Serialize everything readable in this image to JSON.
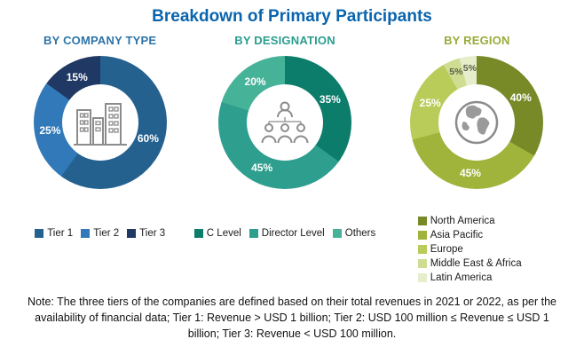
{
  "title": "Breakdown of Primary Participants",
  "note": "Note: The three tiers of the companies are defined based on their total revenues in 2021 or 2022, as per the availability of financial data; Tier 1: Revenue > USD 1 billion; Tier 2: USD 100 million ≤ Revenue ≤ USD 1 billion; Tier 3: Revenue < USD 100 million.",
  "chart_data": [
    {
      "type": "pie",
      "title": "BY COMPANY TYPE",
      "accent": "#2e74a8",
      "center_icon": "buildings-icon",
      "legend_layout": "row",
      "legend_position": "bottom",
      "slices": [
        {
          "label": "Tier 1",
          "value": 60,
          "color": "#25618f"
        },
        {
          "label": "Tier 2",
          "value": 25,
          "color": "#3179b8"
        },
        {
          "label": "Tier 3",
          "value": 15,
          "color": "#1f3864"
        }
      ]
    },
    {
      "type": "pie",
      "title": "BY DESIGNATION",
      "accent": "#2a9d8f",
      "center_icon": "org-people-icon",
      "legend_layout": "row",
      "legend_position": "bottom",
      "slices": [
        {
          "label": "C Level",
          "value": 35,
          "color": "#0c7c6b"
        },
        {
          "label": "Director Level",
          "value": 45,
          "color": "#2e9e8e"
        },
        {
          "label": "Others",
          "value": 20,
          "color": "#46b298"
        }
      ]
    },
    {
      "type": "pie",
      "title": "BY REGION",
      "accent": "#9bab3a",
      "center_icon": "globe-icon",
      "legend_layout": "column",
      "legend_position": "bottom",
      "slices": [
        {
          "label": "North America",
          "value": 40,
          "color": "#788a28"
        },
        {
          "label": "Asia Pacific",
          "value": 45,
          "color": "#a0b43c"
        },
        {
          "label": "Europe",
          "value": 25,
          "color": "#b9cb59"
        },
        {
          "label": "Middle East & Africa",
          "value": 5,
          "color": "#cedd92"
        },
        {
          "label": "Latin America",
          "value": 5,
          "color": "#e6edcb"
        }
      ]
    }
  ]
}
